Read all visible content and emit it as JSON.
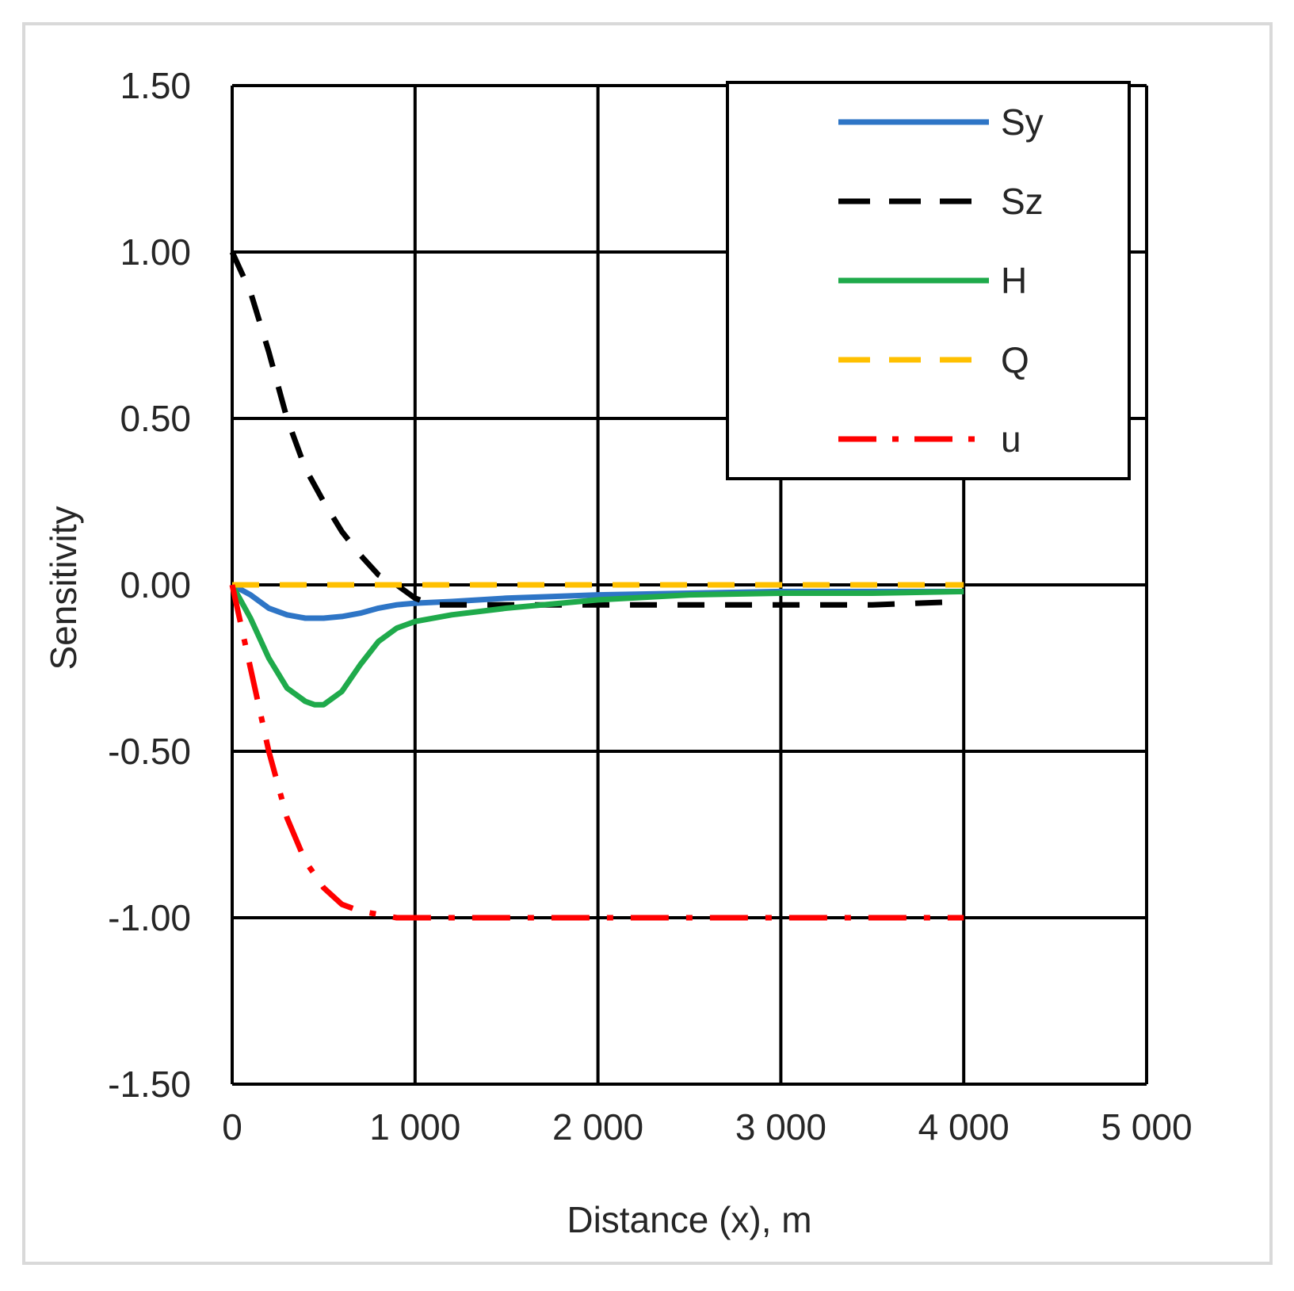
{
  "chart_data": {
    "type": "line",
    "title": "",
    "xlabel": "Distance (x), m",
    "ylabel": "Sensitivity",
    "xlim": [
      0,
      5000
    ],
    "ylim": [
      -1.5,
      1.5
    ],
    "x_ticks": [
      0,
      1000,
      2000,
      3000,
      4000,
      5000
    ],
    "x_tick_labels": [
      "0",
      "1 000",
      "2 000",
      "3 000",
      "4 000",
      "5 000"
    ],
    "y_ticks": [
      1.5,
      1.0,
      0.5,
      0.0,
      -0.5,
      -1.0,
      -1.5
    ],
    "y_tick_labels": [
      "1.50",
      "1.00",
      "0.50",
      "0.00",
      "-0.50",
      "-1.00",
      "-1.50"
    ],
    "grid": true,
    "legend_position": "top-right",
    "series": [
      {
        "name": "Sy",
        "color": "#2e75c6",
        "style": "solid",
        "x": [
          0,
          100,
          200,
          300,
          400,
          500,
          600,
          700,
          800,
          900,
          1000,
          1200,
          1500,
          2000,
          2500,
          3000,
          3500,
          4000
        ],
        "y": [
          0,
          -0.03,
          -0.07,
          -0.09,
          -0.1,
          -0.1,
          -0.095,
          -0.085,
          -0.07,
          -0.06,
          -0.055,
          -0.05,
          -0.04,
          -0.03,
          -0.025,
          -0.02,
          -0.02,
          -0.02
        ]
      },
      {
        "name": "Sz",
        "color": "#000000",
        "style": "dashed",
        "x": [
          0,
          100,
          200,
          300,
          400,
          500,
          600,
          700,
          800,
          900,
          1000,
          1100,
          1500,
          2000,
          2500,
          3000,
          3500,
          4000
        ],
        "y": [
          1.0,
          0.88,
          0.7,
          0.5,
          0.35,
          0.25,
          0.16,
          0.09,
          0.03,
          0.0,
          -0.04,
          -0.06,
          -0.06,
          -0.06,
          -0.06,
          -0.06,
          -0.06,
          -0.05
        ]
      },
      {
        "name": "H",
        "color": "#1faa4b",
        "style": "solid",
        "x": [
          0,
          100,
          200,
          300,
          400,
          450,
          500,
          600,
          700,
          800,
          900,
          1000,
          1200,
          1500,
          2000,
          2500,
          3000,
          3500,
          4000
        ],
        "y": [
          0,
          -0.1,
          -0.22,
          -0.31,
          -0.35,
          -0.36,
          -0.36,
          -0.32,
          -0.24,
          -0.17,
          -0.13,
          -0.11,
          -0.09,
          -0.07,
          -0.045,
          -0.03,
          -0.025,
          -0.025,
          -0.02
        ]
      },
      {
        "name": "Q",
        "color": "#ffc000",
        "style": "dashed",
        "x": [
          0,
          1000,
          2000,
          3000,
          4000
        ],
        "y": [
          0,
          0,
          0,
          0,
          0
        ]
      },
      {
        "name": "u",
        "color": "#ff0000",
        "style": "dashdot",
        "x": [
          0,
          100,
          200,
          300,
          400,
          500,
          600,
          700,
          800,
          900,
          1000,
          1500,
          2000,
          3000,
          4000
        ],
        "y": [
          0,
          -0.25,
          -0.5,
          -0.7,
          -0.83,
          -0.91,
          -0.96,
          -0.98,
          -0.99,
          -1.0,
          -1.0,
          -1.0,
          -1.0,
          -1.0,
          -1.0
        ]
      }
    ]
  }
}
